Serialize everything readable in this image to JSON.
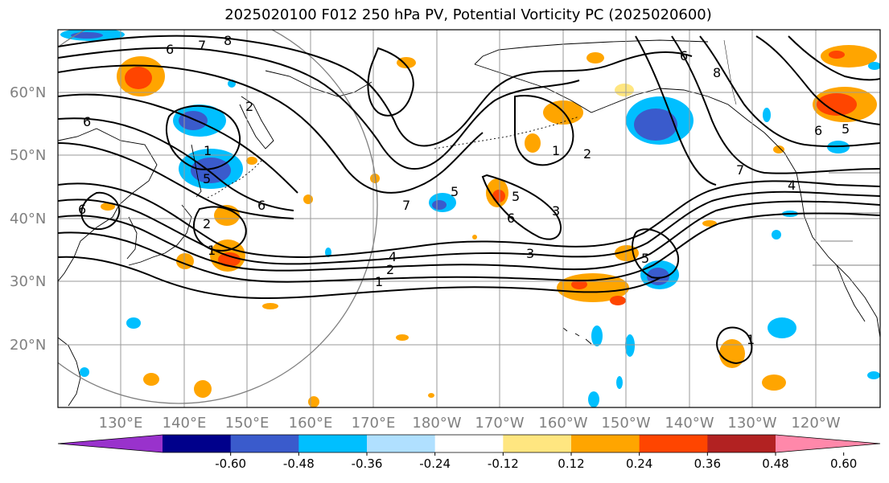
{
  "title": "2025020100 F012 250 hPa PV, Potential Vorticity PC (2025020600)",
  "lat_labels": [
    "60°N",
    "50°N",
    "40°N",
    "30°N",
    "20°N"
  ],
  "lon_labels": [
    "130°E",
    "140°E",
    "150°E",
    "160°E",
    "170°E",
    "180°W",
    "170°W",
    "160°W",
    "150°W",
    "140°W",
    "130°W",
    "120°W"
  ],
  "colorbar": {
    "tick_labels": [
      "-0.60",
      "-0.48",
      "-0.36",
      "-0.24",
      "-0.12",
      "0.12",
      "0.24",
      "0.36",
      "0.48",
      "0.60"
    ],
    "colors": [
      "#9932cc",
      "#00008b",
      "#3a5bcc",
      "#00bfff",
      "#b0e0ff",
      "#ffffff",
      "#ffe680",
      "#ffa500",
      "#ff4500",
      "#b22222",
      "#ff88aa"
    ]
  },
  "contour_labels": [
    "6",
    "7",
    "8",
    "6",
    "1",
    "6",
    "5",
    "2",
    "6",
    "2",
    "1",
    "7",
    "5",
    "6",
    "3",
    "2",
    "4",
    "1",
    "3",
    "5",
    "1",
    "2",
    "7",
    "5",
    "4",
    "6",
    "5",
    "8",
    "6",
    "1"
  ],
  "colors": {
    "land_outline": "#000000",
    "grid": "#9a9a9a",
    "contour": "#000000"
  }
}
